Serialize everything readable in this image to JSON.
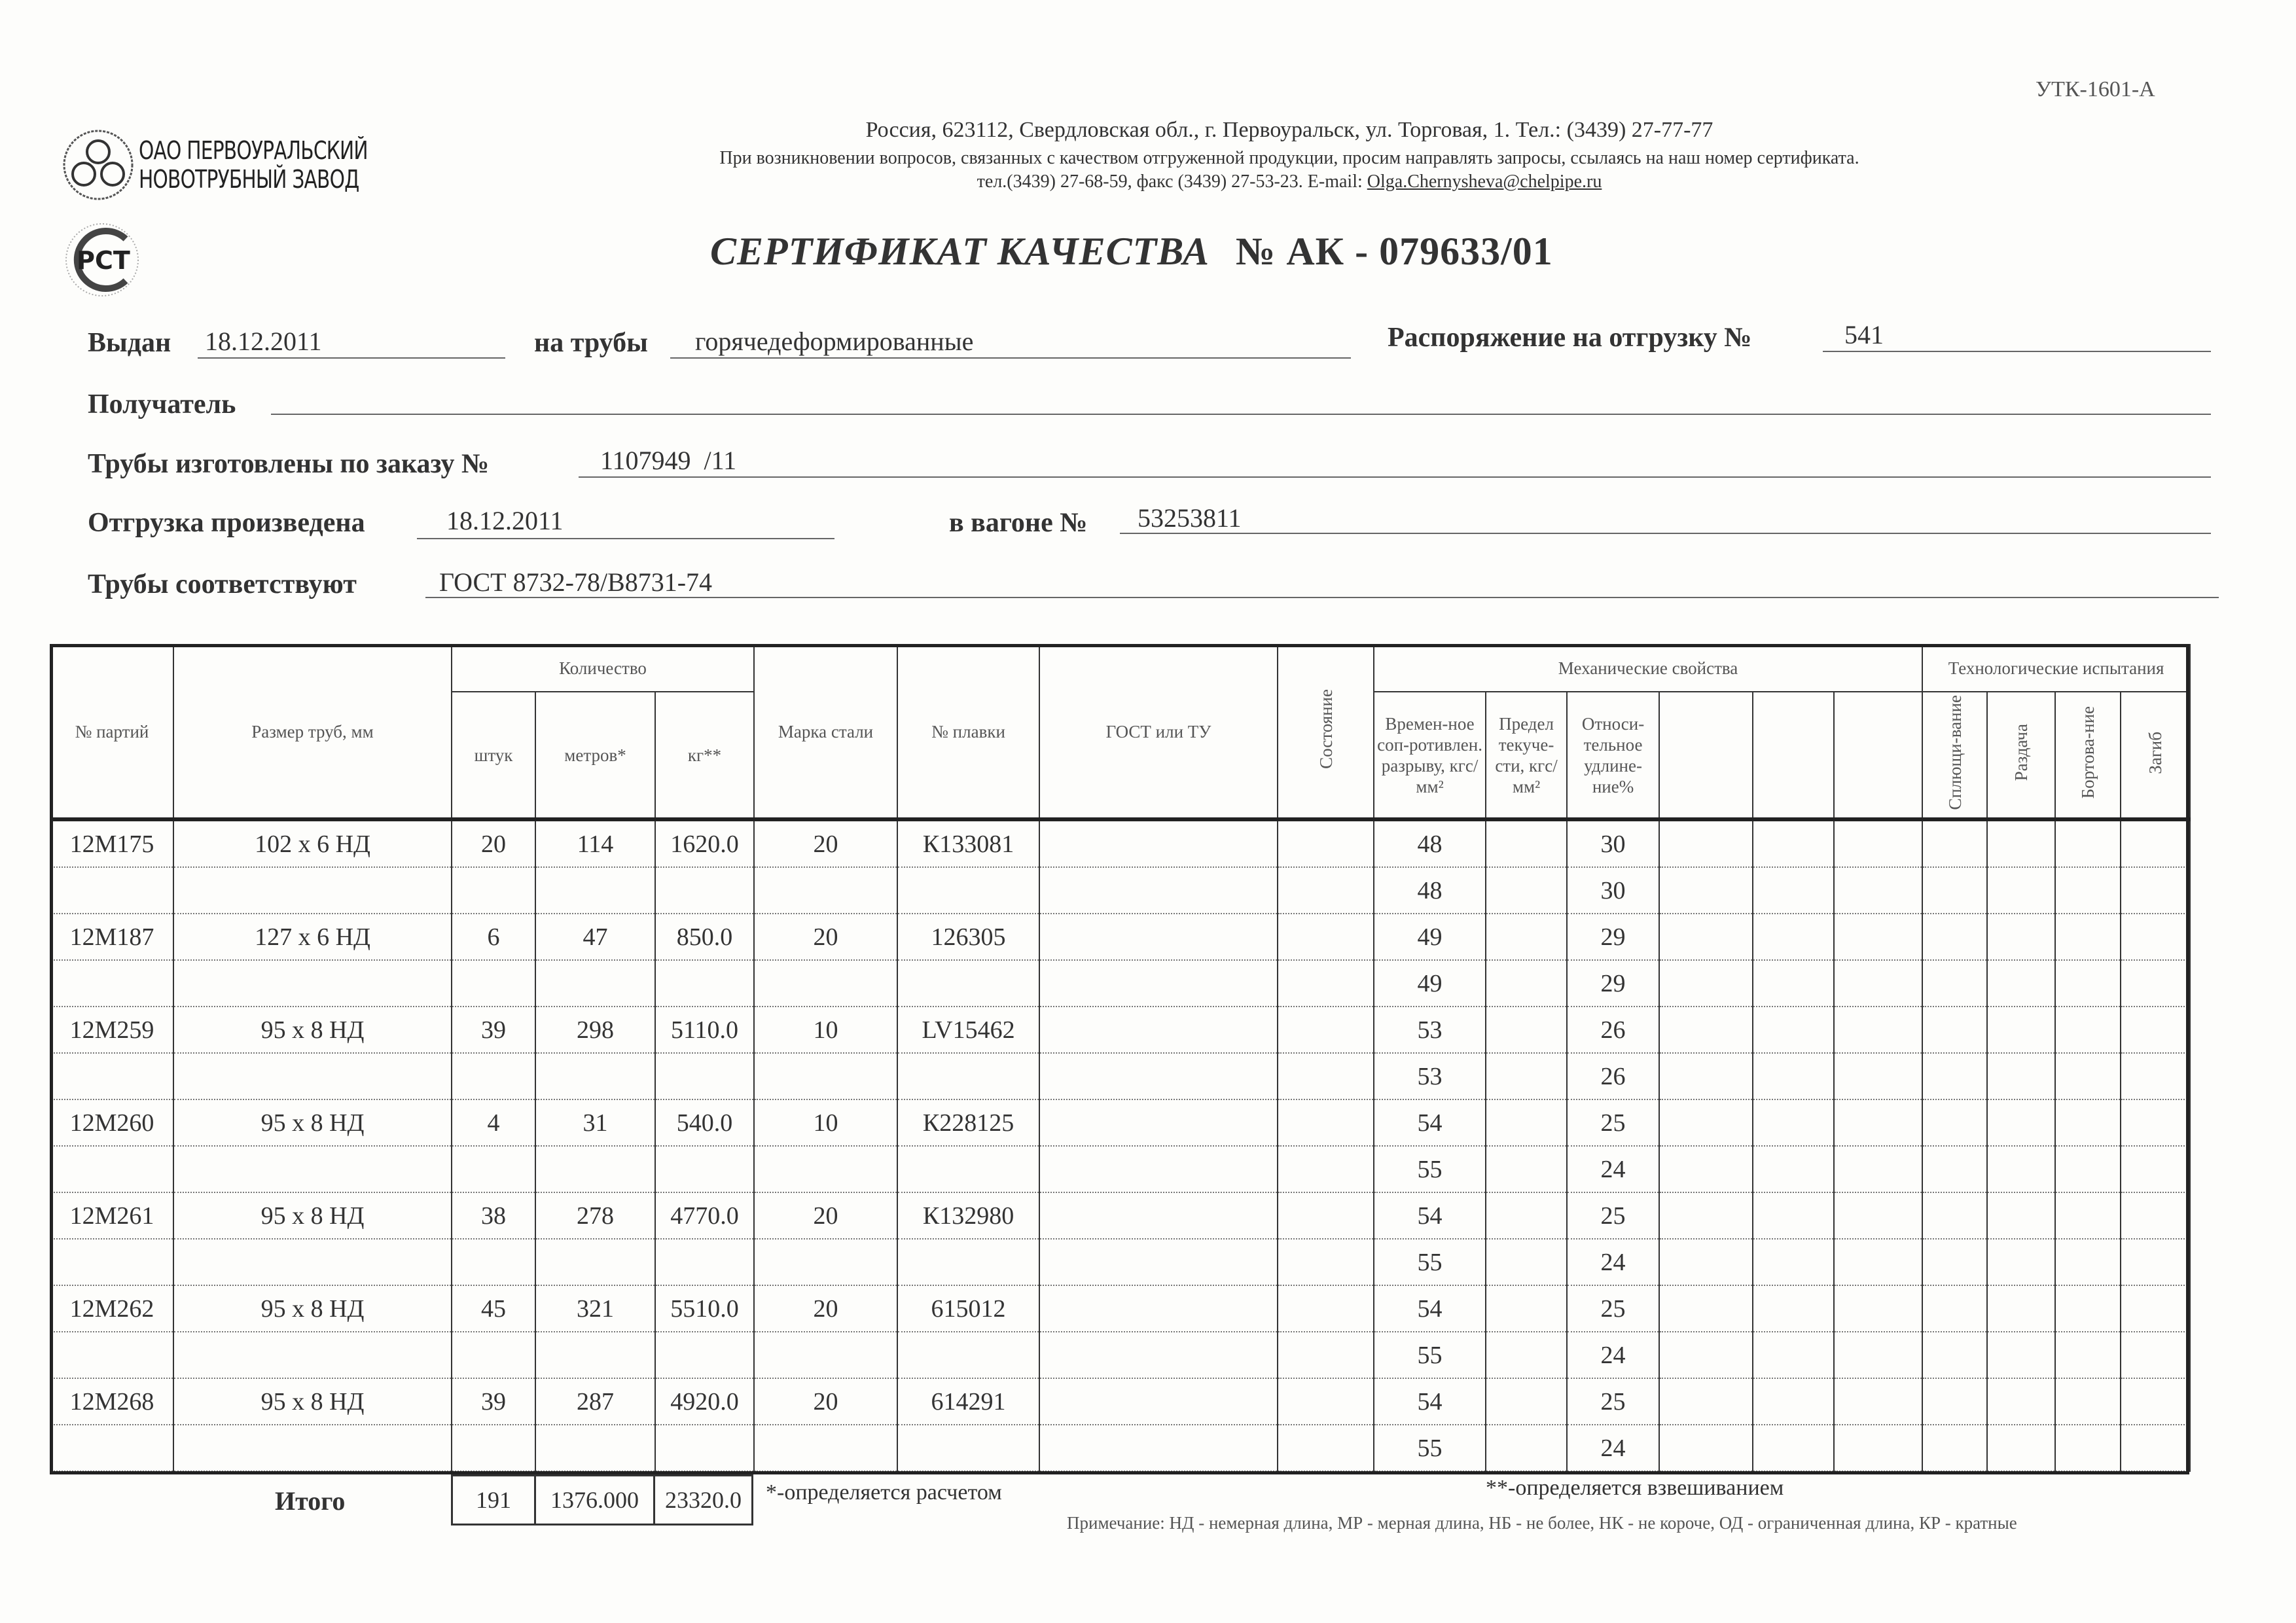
{
  "form_code": "УТК-1601-А",
  "company": {
    "name_line1": "ОАО ПЕРВОУРАЛЬСКИЙ",
    "name_line2": "НОВОТРУБНЫЙ ЗАВОД",
    "address": "Россия, 623112, Свердловская обл., г. Первоуральск, ул. Торговая, 1. Тел.: (3439) 27-77-77",
    "request_note": "При возникновении вопросов, связанных с качеством отгруженной продукции, просим направлять запросы, ссылаясь на наш номер сертификата.",
    "contacts": "тел.(3439) 27-68-59, факс (3439) 27-53-23.  E-mail: ",
    "email": "Olga.Chernysheva@chelpipe.ru",
    "cert_mark": "РСТ"
  },
  "title": {
    "text": "СЕРТИФИКАТ КАЧЕСТВА",
    "number": "№  АК -  079633/01"
  },
  "fields": {
    "issued_label": "Выдан",
    "issued_value": "18.12.2011",
    "pipes_label": "на трубы",
    "pipes_value": "горячедеформированные",
    "order_label": "Распоряжение на отгрузку №",
    "order_value": "541",
    "recipient_label": "Получатель",
    "recipient_value": "",
    "made_label": "Трубы изготовлены по заказу №",
    "made_value": "1107949  /11",
    "shipped_label": "Отгрузка произведена",
    "shipped_value": "18.12.2011",
    "wagon_label": "в вагоне №",
    "wagon_value": "53253811",
    "conform_label": "Трубы соответствуют",
    "conform_value": "ГОСТ 8732-78/В8731-74"
  },
  "table": {
    "headers": {
      "batch": "№ партий",
      "size": "Размер труб, мм",
      "quantity": "Количество",
      "pcs": "штук",
      "meters": "метров*",
      "kg": "кг**",
      "steel": "Марка стали",
      "heat": "№ плавки",
      "gost": "ГОСТ или ТУ",
      "state": "Состояние",
      "mech": "Механические свойства",
      "tensile": "Времен-ное соп-ротивлен. разрыву, кгс/мм²",
      "yield": "Предел текуче-сти, кгс/мм²",
      "elong": "Относи-тельное удлине-ние%",
      "tech": "Технологические испытания",
      "flatten": "Сплющи-вание",
      "expand": "Раздача",
      "flange": "Бортова-ние",
      "bend": "Загиб"
    },
    "rows": [
      {
        "batch": "12M175",
        "size": "102 х 6 НД",
        "pcs": "20",
        "meters": "114",
        "kg": "1620.0",
        "steel": "20",
        "heat": "К133081",
        "mech": [
          [
            "48",
            "30"
          ],
          [
            "48",
            "30"
          ]
        ]
      },
      {
        "batch": "12M187",
        "size": "127 х 6 НД",
        "pcs": "6",
        "meters": "47",
        "kg": "850.0",
        "steel": "20",
        "heat": "126305",
        "mech": [
          [
            "49",
            "29"
          ],
          [
            "49",
            "29"
          ]
        ]
      },
      {
        "batch": "12M259",
        "size": "95 х 8 НД",
        "pcs": "39",
        "meters": "298",
        "kg": "5110.0",
        "steel": "10",
        "heat": "LV15462",
        "mech": [
          [
            "53",
            "26"
          ],
          [
            "53",
            "26"
          ]
        ]
      },
      {
        "batch": "12M260",
        "size": "95 х 8 НД",
        "pcs": "4",
        "meters": "31",
        "kg": "540.0",
        "steel": "10",
        "heat": "К228125",
        "mech": [
          [
            "54",
            "25"
          ],
          [
            "55",
            "24"
          ]
        ]
      },
      {
        "batch": "12M261",
        "size": "95 х 8 НД",
        "pcs": "38",
        "meters": "278",
        "kg": "4770.0",
        "steel": "20",
        "heat": "К132980",
        "mech": [
          [
            "54",
            "25"
          ],
          [
            "55",
            "24"
          ]
        ]
      },
      {
        "batch": "12M262",
        "size": "95 х 8 НД",
        "pcs": "45",
        "meters": "321",
        "kg": "5510.0",
        "steel": "20",
        "heat": "615012",
        "mech": [
          [
            "54",
            "25"
          ],
          [
            "55",
            "24"
          ]
        ]
      },
      {
        "batch": "12M268",
        "size": "95 х 8 НД",
        "pcs": "39",
        "meters": "287",
        "kg": "4920.0",
        "steel": "20",
        "heat": "614291",
        "mech": [
          [
            "54",
            "25"
          ],
          [
            "55",
            "24"
          ]
        ]
      }
    ],
    "totals": {
      "label": "Итого",
      "pcs": "191",
      "meters": "1376.000",
      "kg": "23320.0"
    }
  },
  "footnotes": {
    "calc": "*-определяется расчетом",
    "weigh": "**-определяется взвешиванием",
    "note": "Примечание: НД - немерная длина, МР - мерная длина, НБ - не более, НК - не короче, ОД - ограниченная длина, КР - кратные"
  }
}
